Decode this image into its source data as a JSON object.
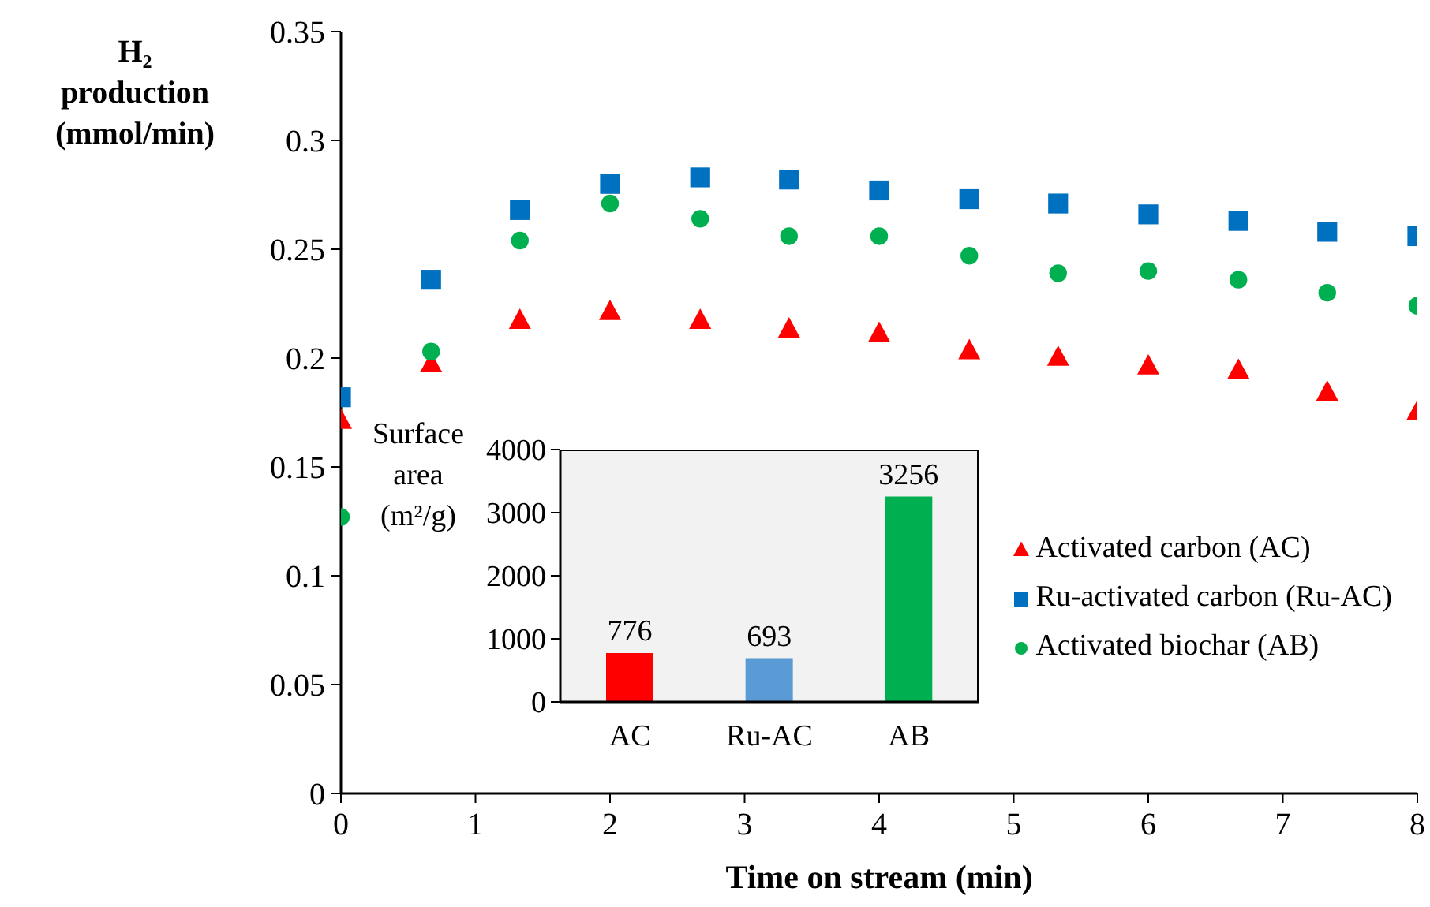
{
  "chart_data": [
    {
      "type": "scatter",
      "xlabel": "Time on stream (min)",
      "ylabel": "H₂ production (mmol/min)",
      "x": [
        0,
        0.67,
        1.33,
        2,
        2.67,
        3.33,
        4,
        4.67,
        5.33,
        6,
        6.67,
        7.33,
        8
      ],
      "xlim": [
        0,
        8
      ],
      "xticks": [
        0,
        1,
        2,
        3,
        4,
        5,
        6,
        7,
        8
      ],
      "ylim": [
        0,
        0.35
      ],
      "yticks": [
        0,
        0.05,
        0.1,
        0.15,
        0.2,
        0.25,
        0.3,
        0.35
      ],
      "legend": "right",
      "grid": false,
      "series": [
        {
          "name": "Activated carbon (AC)",
          "color": "#ff0000",
          "marker": "triangle",
          "values": [
            0.171,
            0.197,
            0.217,
            0.221,
            0.217,
            0.213,
            0.211,
            0.203,
            0.2,
            0.196,
            0.194,
            0.184,
            0.175
          ]
        },
        {
          "name": "Ru-activated carbon (Ru-AC)",
          "color": "#0070c0",
          "marker": "square",
          "values": [
            0.182,
            0.236,
            0.268,
            0.28,
            0.283,
            0.282,
            0.277,
            0.273,
            0.271,
            0.266,
            0.263,
            0.258,
            0.256
          ]
        },
        {
          "name": "Activated biochar (AB)",
          "color": "#00b050",
          "marker": "circle",
          "values": [
            0.127,
            0.203,
            0.254,
            0.271,
            0.264,
            0.256,
            0.256,
            0.247,
            0.239,
            0.24,
            0.236,
            0.23,
            0.224
          ]
        }
      ]
    },
    {
      "type": "bar",
      "ylabel": "Surface area (m²/g)",
      "categories": [
        "AC",
        "Ru-AC",
        "AB"
      ],
      "values": [
        776,
        693,
        3256
      ],
      "colors": [
        "#ff0000",
        "#5b9bd5",
        "#00b050"
      ],
      "ylim": [
        0,
        4000
      ],
      "yticks": [
        0,
        1000,
        2000,
        3000,
        4000
      ],
      "data_labels": true,
      "grid": false
    }
  ]
}
